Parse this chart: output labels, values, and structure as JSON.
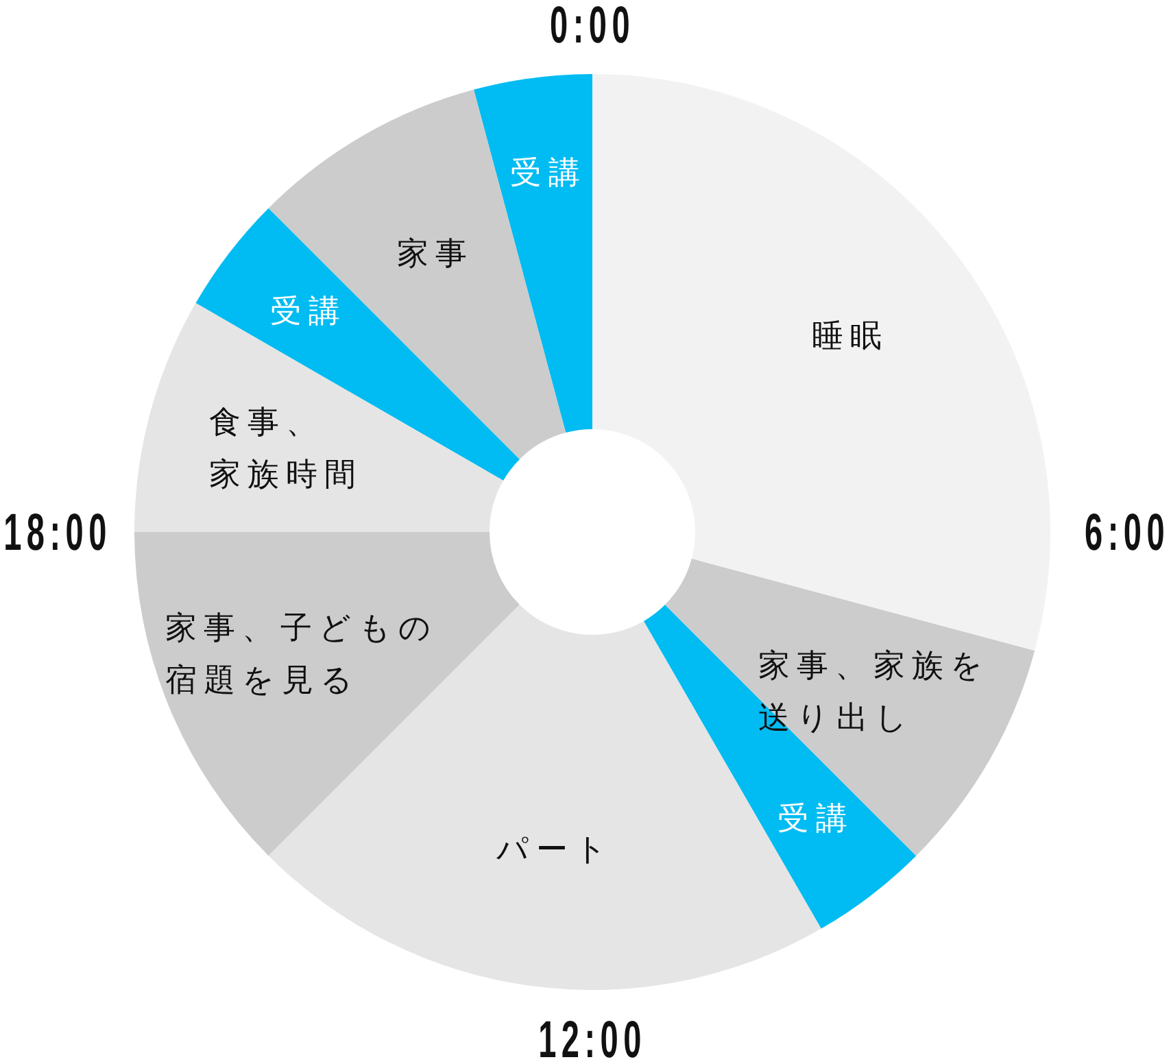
{
  "chart_data": {
    "type": "donut",
    "categories": [
      "睡眠",
      "家事、家族を送り出し",
      "受講",
      "パート",
      "家事、子どもの宿題を見る",
      "食事、家族時間",
      "受講",
      "家事",
      "受講"
    ],
    "values": [
      29.17,
      8.33,
      4.17,
      20.83,
      12.5,
      8.33,
      4.17,
      8.33,
      4.17
    ],
    "colors": [
      "#f2f2f2",
      "#cccccc",
      "#00bcf2",
      "#e5e5e5",
      "#cccccc",
      "#e5e5e5",
      "#00bcf2",
      "#cccccc",
      "#00bcf2"
    ],
    "annotations": [
      "0:00",
      "6:00",
      "12:00",
      "18:00"
    ]
  }
}
